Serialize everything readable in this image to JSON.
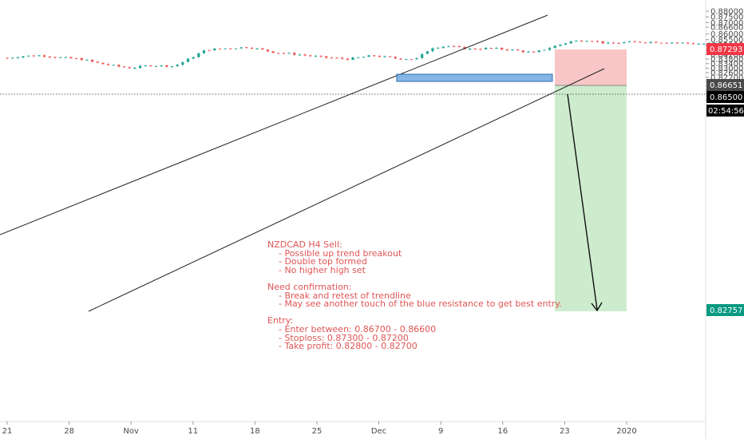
{
  "chart_data": {
    "type": "candlestick",
    "symbol": "NZDCAD",
    "timeframe": "H4",
    "ylim": [
      0.809,
      0.882
    ],
    "y_ticks": [
      "0.88000",
      "0.87500",
      "0.87000",
      "0.86600",
      "0.86000",
      "0.85500",
      "0.85000",
      "0.84600",
      "0.84200",
      "0.83800",
      "0.83400",
      "0.83000",
      "0.82600",
      "0.82200",
      "0.81800",
      "0.81450",
      "0.81100"
    ],
    "x_ticks": [
      "21",
      "28",
      "Nov",
      "11",
      "18",
      "25",
      "Dec",
      "9",
      "16",
      "23",
      "2020"
    ],
    "close_path": [
      {
        "x": 0,
        "y": 0.839
      },
      {
        "x": 0.25,
        "y": 0.8406
      },
      {
        "x": 0.55,
        "y": 0.8412
      },
      {
        "x": 0.8,
        "y": 0.8396
      },
      {
        "x": 1.2,
        "y": 0.8378
      },
      {
        "x": 1.5,
        "y": 0.834
      },
      {
        "x": 1.8,
        "y": 0.8315
      },
      {
        "x": 2.0,
        "y": 0.8302
      },
      {
        "x": 2.3,
        "y": 0.8325
      },
      {
        "x": 2.7,
        "y": 0.8318
      },
      {
        "x": 3.0,
        "y": 0.84
      },
      {
        "x": 3.2,
        "y": 0.846
      },
      {
        "x": 3.55,
        "y": 0.8475
      },
      {
        "x": 3.9,
        "y": 0.8485
      },
      {
        "x": 4.3,
        "y": 0.844
      },
      {
        "x": 4.7,
        "y": 0.842
      },
      {
        "x": 5.1,
        "y": 0.8395
      },
      {
        "x": 5.5,
        "y": 0.838
      },
      {
        "x": 5.9,
        "y": 0.841
      },
      {
        "x": 6.3,
        "y": 0.8385
      },
      {
        "x": 6.6,
        "y": 0.838
      },
      {
        "x": 6.85,
        "y": 0.848
      },
      {
        "x": 7.1,
        "y": 0.8495
      },
      {
        "x": 7.45,
        "y": 0.8468
      },
      {
        "x": 7.8,
        "y": 0.8475
      },
      {
        "x": 8.15,
        "y": 0.846
      },
      {
        "x": 8.5,
        "y": 0.8435
      },
      {
        "x": 8.85,
        "y": 0.8495
      },
      {
        "x": 9.1,
        "y": 0.8535
      },
      {
        "x": 9.4,
        "y": 0.8548
      },
      {
        "x": 9.7,
        "y": 0.8515
      },
      {
        "x": 10.0,
        "y": 0.8528
      },
      {
        "x": 10.4,
        "y": 0.853
      },
      {
        "x": 10.8,
        "y": 0.8525
      },
      {
        "x": 11.2,
        "y": 0.8512
      },
      {
        "x": 11.6,
        "y": 0.853
      },
      {
        "x": 11.95,
        "y": 0.8525
      },
      {
        "x": 12.15,
        "y": 0.859
      },
      {
        "x": 12.35,
        "y": 0.865
      },
      {
        "x": 12.6,
        "y": 0.8672
      },
      {
        "x": 12.9,
        "y": 0.866
      },
      {
        "x": 13.15,
        "y": 0.861
      },
      {
        "x": 13.45,
        "y": 0.8612
      },
      {
        "x": 13.7,
        "y": 0.859
      },
      {
        "x": 14.0,
        "y": 0.866
      },
      {
        "x": 14.1,
        "y": 0.8705
      },
      {
        "x": 14.35,
        "y": 0.869
      },
      {
        "x": 14.7,
        "y": 0.8672
      },
      {
        "x": 15.1,
        "y": 0.868
      },
      {
        "x": 15.4,
        "y": 0.865
      },
      {
        "x": 15.7,
        "y": 0.868
      },
      {
        "x": 15.95,
        "y": 0.87
      },
      {
        "x": 16.15,
        "y": 0.8718
      },
      {
        "x": 16.45,
        "y": 0.8685
      },
      {
        "x": 16.8,
        "y": 0.867
      },
      {
        "x": 17.1,
        "y": 0.868
      },
      {
        "x": 17.4,
        "y": 0.8658
      },
      {
        "x": 17.6,
        "y": 0.865
      }
    ],
    "price_labels": {
      "stop": "0.87293",
      "entry": "0.86651",
      "current": "0.86500",
      "countdown": "02:54:56",
      "target": "0.82757"
    },
    "colors": {
      "up": "#26a69a",
      "down": "#ef5350",
      "stop_zone": "#f8c6c6",
      "profit_zone": "#cdeccd",
      "stop_tag": "#f23645",
      "target_tag": "#089981",
      "resistance_fill": "#6fa8e0",
      "note_text": "#e05555"
    }
  },
  "note": {
    "lines": [
      "NZDCAD H4 Sell:",
      "    - Possible up trend breakout",
      "    - Double top formed",
      "    - No higher high set",
      "",
      "Need confirmation:",
      "    - Break and retest of trendline",
      "    - May see another touch of the blue resistance to get best entry.",
      "",
      "Entry:",
      "    - Enter between: 0.86700 - 0.86600",
      "    - Stoploss: 0.87300 - 0.87200",
      "    - Take profit: 0.82800 - 0.82700"
    ]
  }
}
